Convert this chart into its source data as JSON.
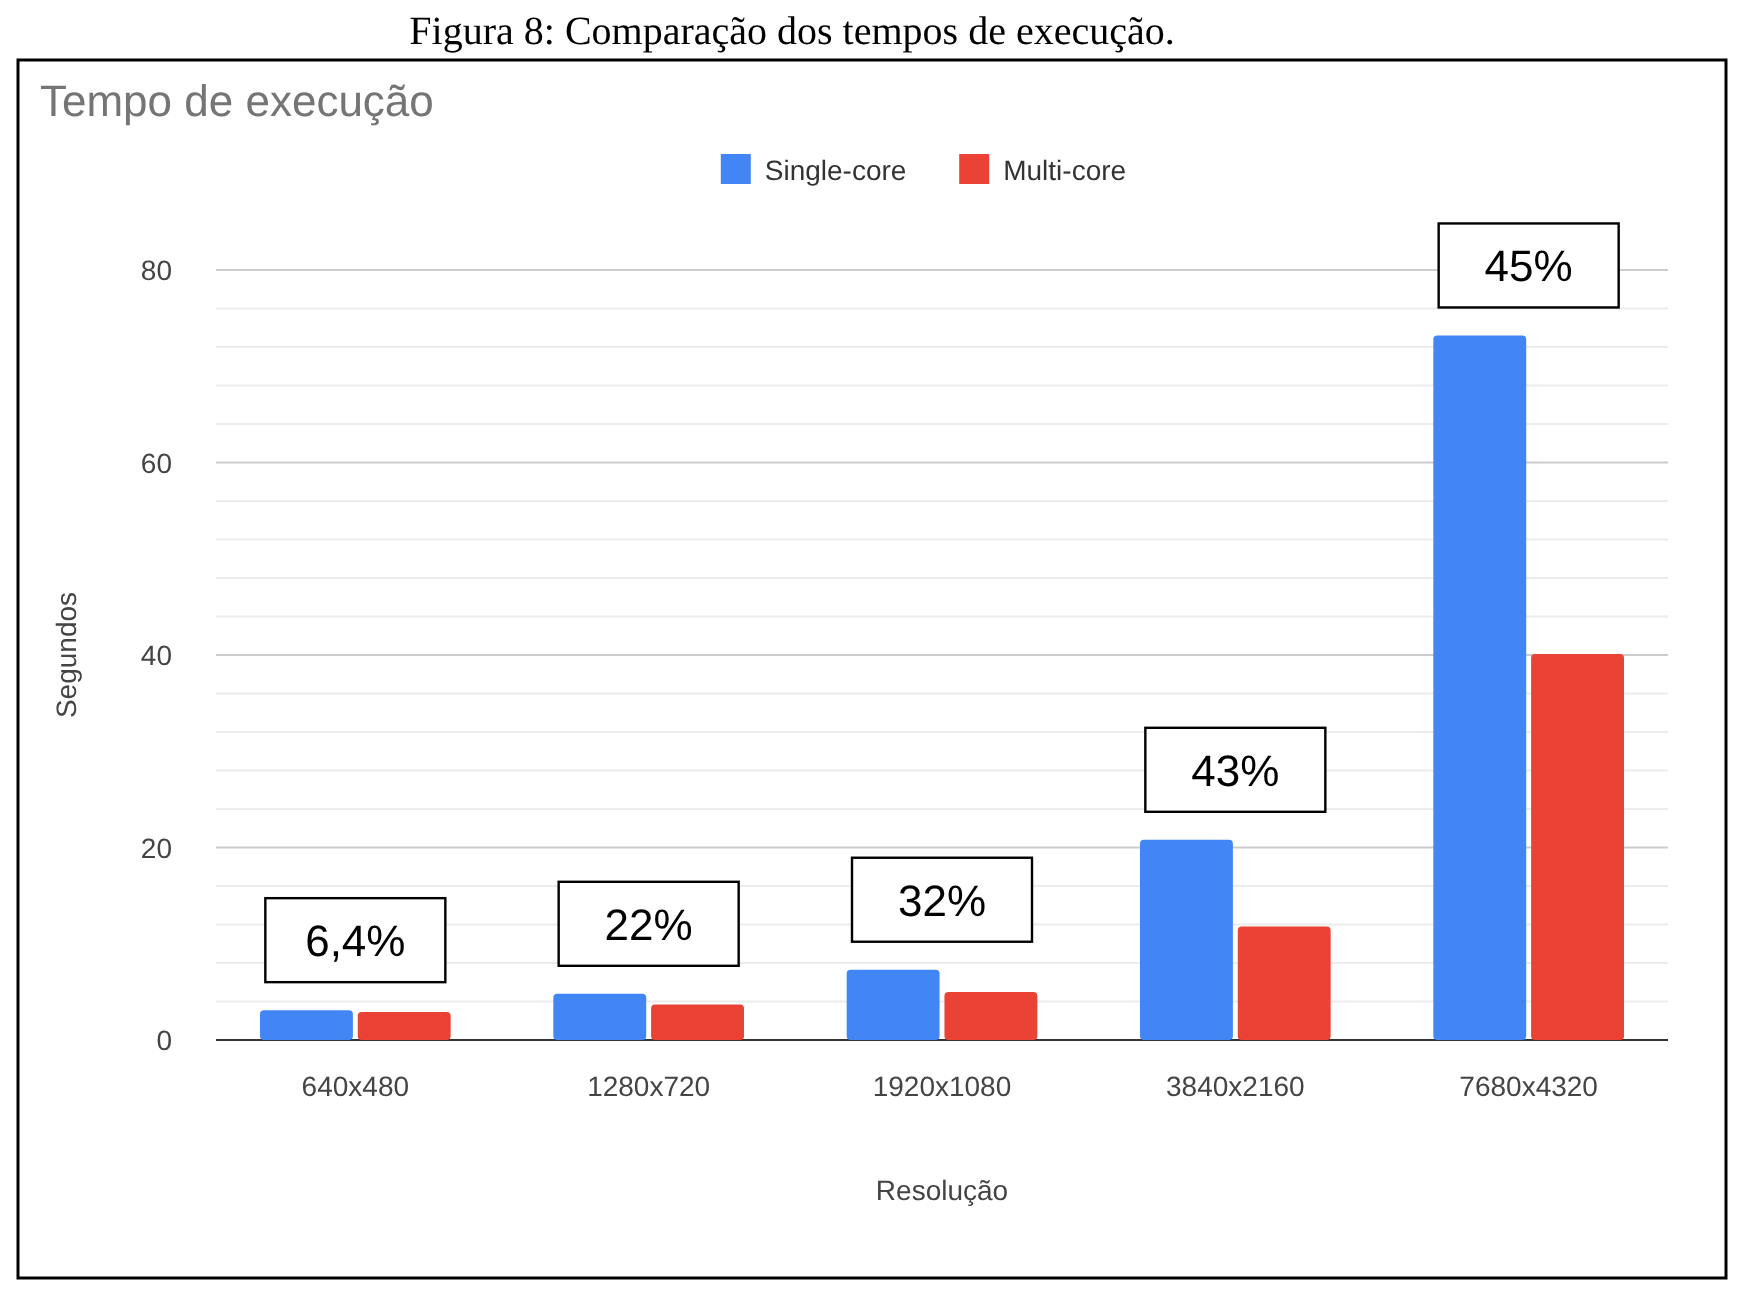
{
  "chart_data": {
    "type": "bar",
    "title": "Tempo de execução",
    "xlabel": "Resolução",
    "ylabel": "Segundos",
    "categories": [
      "640x480",
      "1280x720",
      "1920x1080",
      "3840x2160",
      "7680x4320"
    ],
    "series": [
      {
        "name": "Single-core",
        "color": "#4285f4",
        "values": [
          3.1,
          4.8,
          7.3,
          20.8,
          73.2
        ]
      },
      {
        "name": "Multi-core",
        "color": "#ea4335",
        "values": [
          2.9,
          3.7,
          5.0,
          11.8,
          40.1
        ]
      }
    ],
    "ylim": [
      0,
      80
    ],
    "yticks": [
      0,
      {
        "value": 4,
        "label": null
      },
      {
        "value": 8,
        "label": null
      },
      {
        "value": 12,
        "label": null
      },
      {
        "value": 16,
        "label": null
      },
      20,
      {
        "value": 24,
        "label": null
      },
      {
        "value": 28,
        "label": null
      },
      {
        "value": 32,
        "label": null
      },
      {
        "value": 36,
        "label": null
      },
      40,
      {
        "value": 44,
        "label": null
      },
      {
        "value": 48,
        "label": null
      },
      {
        "value": 52,
        "label": null
      },
      {
        "value": 56,
        "label": null
      },
      60,
      {
        "value": 64,
        "label": null
      },
      {
        "value": 68,
        "label": null
      },
      {
        "value": 72,
        "label": null
      },
      {
        "value": 76,
        "label": null
      },
      80
    ],
    "grid": true,
    "legend": "top",
    "annotations": [
      "Figura 8: Comparação dos tempos de execução.",
      "6,4%",
      "22%",
      "32%",
      "43%",
      "45%"
    ]
  }
}
